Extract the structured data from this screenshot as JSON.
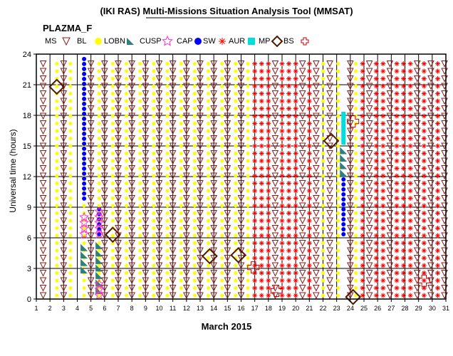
{
  "chart_data": {
    "type": "scatter",
    "title": "(IKI RAS) Multi-Missions Situation Analysis Tool (MMSAT)",
    "subtitle": "PLAZMA_F",
    "xlabel": "March 2015",
    "ylabel": "Universal time (hours)",
    "xlim": [
      1,
      31
    ],
    "ylim": [
      0,
      24
    ],
    "x_ticks": [
      1,
      2,
      3,
      4,
      5,
      6,
      7,
      8,
      9,
      10,
      11,
      12,
      13,
      14,
      15,
      16,
      17,
      18,
      19,
      20,
      21,
      22,
      23,
      24,
      25,
      26,
      27,
      28,
      29,
      30,
      31
    ],
    "y_ticks": [
      0,
      3,
      6,
      9,
      12,
      15,
      18,
      21,
      24
    ],
    "grid": true,
    "legend": [
      {
        "label": "MS",
        "symbol": "triangle-down",
        "color": "#8b1a1a"
      },
      {
        "label": "BL",
        "symbol": "circle",
        "color": "#ffff00"
      },
      {
        "label": "LOBN",
        "symbol": "triangle-right",
        "color": "#2f7f7f"
      },
      {
        "label": "CUSP",
        "symbol": "star",
        "color": "#ff33cc"
      },
      {
        "label": "CAP",
        "symbol": "circle",
        "color": "#0000ff"
      },
      {
        "label": "SW",
        "symbol": "asterisk",
        "color": "#ff0000"
      },
      {
        "label": "AUR",
        "symbol": "square",
        "color": "#00dddd"
      },
      {
        "label": "MP",
        "symbol": "diamond",
        "color": "#4d1a00"
      },
      {
        "label": "BS",
        "symbol": "cross",
        "color": "#cc0000"
      }
    ],
    "bands": [
      {
        "series": "MS",
        "x": 1.5,
        "y": [
          0,
          24
        ]
      },
      {
        "series": "BL",
        "x": 2.5,
        "y": [
          0,
          24
        ]
      },
      {
        "series": "MS",
        "x": 3.0,
        "y": [
          0,
          24
        ]
      },
      {
        "series": "BL",
        "x": 3.5,
        "y": [
          0,
          24
        ]
      },
      {
        "series": "BL",
        "x": 4.5,
        "y": [
          0,
          24
        ]
      },
      {
        "series": "MS",
        "x": 5.0,
        "y": [
          0,
          24
        ]
      },
      {
        "series": "BL",
        "x": 5.6,
        "y": [
          0,
          24
        ]
      },
      {
        "series": "MS",
        "x": 6.0,
        "y": [
          0,
          24
        ]
      },
      {
        "series": "BL",
        "x": 6.6,
        "y": [
          0,
          24
        ]
      },
      {
        "series": "MS",
        "x": 7.0,
        "y": [
          0,
          24
        ]
      },
      {
        "series": "BL",
        "x": 7.6,
        "y": [
          0,
          24
        ]
      },
      {
        "series": "MS",
        "x": 8.0,
        "y": [
          0,
          24
        ]
      },
      {
        "series": "BL",
        "x": 8.6,
        "y": [
          0,
          24
        ]
      },
      {
        "series": "MS",
        "x": 9.0,
        "y": [
          0,
          24
        ]
      },
      {
        "series": "BL",
        "x": 9.6,
        "y": [
          0,
          24
        ]
      },
      {
        "series": "MS",
        "x": 10.0,
        "y": [
          0,
          24
        ]
      },
      {
        "series": "BL",
        "x": 10.6,
        "y": [
          0,
          24
        ]
      },
      {
        "series": "MS",
        "x": 11.0,
        "y": [
          0,
          24
        ]
      },
      {
        "series": "BL",
        "x": 11.6,
        "y": [
          0,
          24
        ]
      },
      {
        "series": "MS",
        "x": 12.0,
        "y": [
          0,
          24
        ]
      },
      {
        "series": "BL",
        "x": 12.6,
        "y": [
          0,
          24
        ]
      },
      {
        "series": "MS",
        "x": 13.0,
        "y": [
          0,
          24
        ]
      },
      {
        "series": "BL",
        "x": 13.6,
        "y": [
          0,
          24
        ]
      },
      {
        "series": "MS",
        "x": 14.0,
        "y": [
          0,
          24
        ]
      },
      {
        "series": "BL",
        "x": 14.6,
        "y": [
          0,
          24
        ]
      },
      {
        "series": "MS",
        "x": 15.0,
        "y": [
          0,
          24
        ]
      },
      {
        "series": "BL",
        "x": 15.6,
        "y": [
          0,
          24
        ]
      },
      {
        "series": "MS",
        "x": 16.0,
        "y": [
          0,
          24
        ]
      },
      {
        "series": "BL",
        "x": 16.5,
        "y": [
          0,
          24
        ]
      },
      {
        "series": "SW",
        "x": 17.0,
        "y": [
          0,
          24
        ]
      },
      {
        "series": "SW",
        "x": 17.5,
        "y": [
          0,
          24
        ]
      },
      {
        "series": "SW",
        "x": 18.0,
        "y": [
          0,
          24
        ]
      },
      {
        "series": "MS",
        "x": 18.5,
        "y": [
          0,
          24
        ]
      },
      {
        "series": "SW",
        "x": 19.0,
        "y": [
          0,
          24
        ]
      },
      {
        "series": "SW",
        "x": 19.5,
        "y": [
          0,
          24
        ]
      },
      {
        "series": "SW",
        "x": 20.0,
        "y": [
          0,
          24
        ]
      },
      {
        "series": "MS",
        "x": 20.5,
        "y": [
          0,
          24
        ]
      },
      {
        "series": "SW",
        "x": 21.0,
        "y": [
          0,
          24
        ]
      },
      {
        "series": "MS",
        "x": 21.5,
        "y": [
          0,
          24
        ]
      },
      {
        "series": "BL",
        "x": 22.0,
        "y": [
          0,
          24
        ]
      },
      {
        "series": "MS",
        "x": 22.5,
        "y": [
          0,
          24
        ]
      },
      {
        "series": "BL",
        "x": 23.1,
        "y": [
          0,
          24
        ]
      },
      {
        "series": "MS",
        "x": 24.0,
        "y": [
          0,
          24
        ]
      },
      {
        "series": "BL",
        "x": 24.4,
        "y": [
          0,
          24
        ]
      },
      {
        "series": "SW",
        "x": 24.9,
        "y": [
          0,
          24
        ]
      },
      {
        "series": "MS",
        "x": 25.4,
        "y": [
          0,
          24
        ]
      },
      {
        "series": "SW",
        "x": 25.9,
        "y": [
          0,
          24
        ]
      },
      {
        "series": "SW",
        "x": 26.4,
        "y": [
          0,
          24
        ]
      },
      {
        "series": "MS",
        "x": 26.9,
        "y": [
          0,
          24
        ]
      },
      {
        "series": "SW",
        "x": 27.4,
        "y": [
          0,
          24
        ]
      },
      {
        "series": "SW",
        "x": 27.9,
        "y": [
          0,
          24
        ]
      },
      {
        "series": "SW",
        "x": 28.4,
        "y": [
          0,
          24
        ]
      },
      {
        "series": "MS",
        "x": 28.9,
        "y": [
          0,
          24
        ]
      },
      {
        "series": "SW",
        "x": 29.4,
        "y": [
          0,
          24
        ]
      },
      {
        "series": "MS",
        "x": 29.9,
        "y": [
          0,
          24
        ]
      },
      {
        "series": "SW",
        "x": 30.4,
        "y": [
          0,
          24
        ]
      },
      {
        "series": "MS",
        "x": 30.9,
        "y": [
          0,
          24
        ]
      },
      {
        "series": "CAP",
        "x": 4.5,
        "y": [
          9.5,
          24
        ]
      },
      {
        "series": "CAP",
        "x": 5.6,
        "y": [
          6,
          9.6
        ]
      },
      {
        "series": "CAP",
        "x": 23.5,
        "y": [
          6,
          12.2
        ]
      },
      {
        "series": "LOBN",
        "x": 4.5,
        "y": [
          2.5,
          6
        ]
      },
      {
        "series": "LOBN",
        "x": 5.6,
        "y": [
          0.5,
          6
        ]
      },
      {
        "series": "LOBN",
        "x": 23.5,
        "y": [
          12,
          15.5
        ]
      },
      {
        "series": "AUR",
        "x": 23.5,
        "y": [
          15,
          18.8
        ]
      },
      {
        "series": "CUSP",
        "x": 4.5,
        "y": [
          6,
          8.5
        ]
      },
      {
        "series": "CUSP",
        "x": 5.6,
        "y": [
          0,
          2
        ]
      },
      {
        "series": "CUSP",
        "x": 5.6,
        "y": [
          6,
          9
        ]
      }
    ],
    "points": [
      {
        "series": "MP",
        "x": 2.5,
        "y": 20.8
      },
      {
        "series": "MP",
        "x": 6.6,
        "y": 6.3
      },
      {
        "series": "MP",
        "x": 13.7,
        "y": 4.2
      },
      {
        "series": "MP",
        "x": 15.8,
        "y": 4.3
      },
      {
        "series": "MP",
        "x": 22.6,
        "y": 15.5
      },
      {
        "series": "MP",
        "x": 24.2,
        "y": 0.2
      },
      {
        "series": "BS",
        "x": 16.9,
        "y": 3.1
      },
      {
        "series": "BS",
        "x": 18.6,
        "y": 0.8
      },
      {
        "series": "BS",
        "x": 24.2,
        "y": 17.4
      },
      {
        "series": "BS",
        "x": 29.4,
        "y": 1.8
      }
    ]
  }
}
